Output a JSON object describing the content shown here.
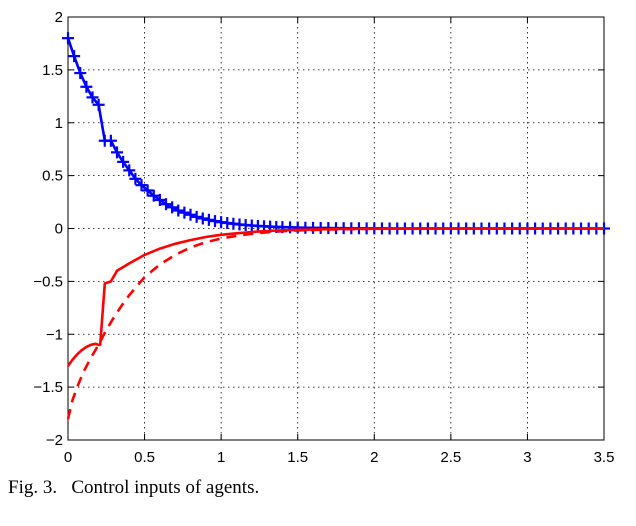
{
  "chart_data": {
    "type": "line",
    "title": "",
    "xlabel": "",
    "ylabel": "",
    "xlim": [
      0,
      3.5
    ],
    "ylim": [
      -2,
      2
    ],
    "x_ticks": [
      "0",
      "0.5",
      "1",
      "1.5",
      "2",
      "2.5",
      "3",
      "3.5"
    ],
    "y_ticks": [
      "2",
      "1.5",
      "1",
      "0.5",
      "0",
      "−0.5",
      "−1",
      "−1.5",
      "−2"
    ],
    "grid": true,
    "series": [
      {
        "color": "#0000ff",
        "style": "solid-with-plus-markers",
        "x": [
          0,
          0.04,
          0.08,
          0.12,
          0.16,
          0.2,
          0.24,
          0.28,
          0.32,
          0.36,
          0.4,
          0.44,
          0.48,
          0.52,
          0.56,
          0.6,
          0.64,
          0.68,
          0.72,
          0.76,
          0.8,
          0.84,
          0.88,
          0.92,
          0.96,
          1.0,
          1.04,
          1.08,
          1.12,
          1.16,
          1.2,
          1.24,
          1.28,
          1.32,
          1.36,
          1.4,
          1.45,
          1.5,
          1.55,
          1.6,
          1.65,
          1.7,
          1.75,
          1.8,
          1.85,
          1.9,
          1.95,
          2.0,
          2.05,
          2.1,
          2.15,
          2.2,
          2.25,
          2.3,
          2.35,
          2.4,
          2.45,
          2.5,
          2.55,
          2.6,
          2.65,
          2.7,
          2.75,
          2.8,
          2.85,
          2.9,
          2.95,
          3.0,
          3.05,
          3.1,
          3.15,
          3.2,
          3.25,
          3.3,
          3.35,
          3.4,
          3.45,
          3.5
        ],
        "y": [
          1.8,
          1.63,
          1.47,
          1.34,
          1.24,
          1.17,
          0.83,
          0.83,
          0.72,
          0.63,
          0.55,
          0.47,
          0.41,
          0.36,
          0.31,
          0.27,
          0.23,
          0.2,
          0.17,
          0.15,
          0.13,
          0.11,
          0.095,
          0.082,
          0.07,
          0.06,
          0.052,
          0.045,
          0.038,
          0.033,
          0.028,
          0.024,
          0.021,
          0.018,
          0.015,
          0.013,
          0.011,
          0.009,
          0.007,
          0.006,
          0.005,
          0.004,
          0.003,
          0.003,
          0.002,
          0.002,
          0.001,
          0.001,
          0.001,
          0,
          0,
          0,
          0,
          0,
          0,
          0,
          0,
          0,
          0,
          0,
          0,
          0,
          0,
          0,
          0,
          0,
          0,
          0,
          0,
          0,
          0,
          0,
          0,
          0,
          0,
          0,
          0,
          0
        ]
      },
      {
        "color": "#ff0000",
        "style": "solid",
        "x": [
          0,
          0.03,
          0.06,
          0.09,
          0.12,
          0.15,
          0.18,
          0.2,
          0.21,
          0.24,
          0.28,
          0.32,
          0.4,
          0.5,
          0.6,
          0.7,
          0.8,
          0.9,
          1.0,
          1.1,
          1.2,
          1.3,
          1.4,
          1.5,
          1.75,
          2.0,
          2.5,
          3.0,
          3.5
        ],
        "y": [
          -1.3,
          -1.24,
          -1.19,
          -1.15,
          -1.12,
          -1.1,
          -1.09,
          -1.1,
          -1.1,
          -0.52,
          -0.5,
          -0.4,
          -0.33,
          -0.25,
          -0.19,
          -0.145,
          -0.11,
          -0.08,
          -0.06,
          -0.045,
          -0.033,
          -0.024,
          -0.017,
          -0.012,
          -0.005,
          -0.002,
          0,
          0,
          0
        ]
      },
      {
        "color": "#ff0000",
        "style": "dashed",
        "x": [
          0,
          0.03,
          0.06,
          0.1,
          0.15,
          0.2,
          0.25,
          0.3,
          0.35,
          0.4,
          0.5,
          0.6,
          0.7,
          0.8,
          0.9,
          1.0,
          1.1,
          1.2,
          1.3,
          1.4,
          1.5,
          1.75,
          2.0,
          2.5,
          3.0,
          3.5
        ],
        "y": [
          -1.8,
          -1.62,
          -1.5,
          -1.36,
          -1.22,
          -1.1,
          -0.96,
          -0.84,
          -0.73,
          -0.63,
          -0.46,
          -0.34,
          -0.25,
          -0.18,
          -0.13,
          -0.095,
          -0.07,
          -0.05,
          -0.036,
          -0.026,
          -0.018,
          -0.008,
          -0.003,
          0,
          0,
          0
        ]
      }
    ]
  },
  "caption": "Fig. 3.   Control inputs of agents."
}
